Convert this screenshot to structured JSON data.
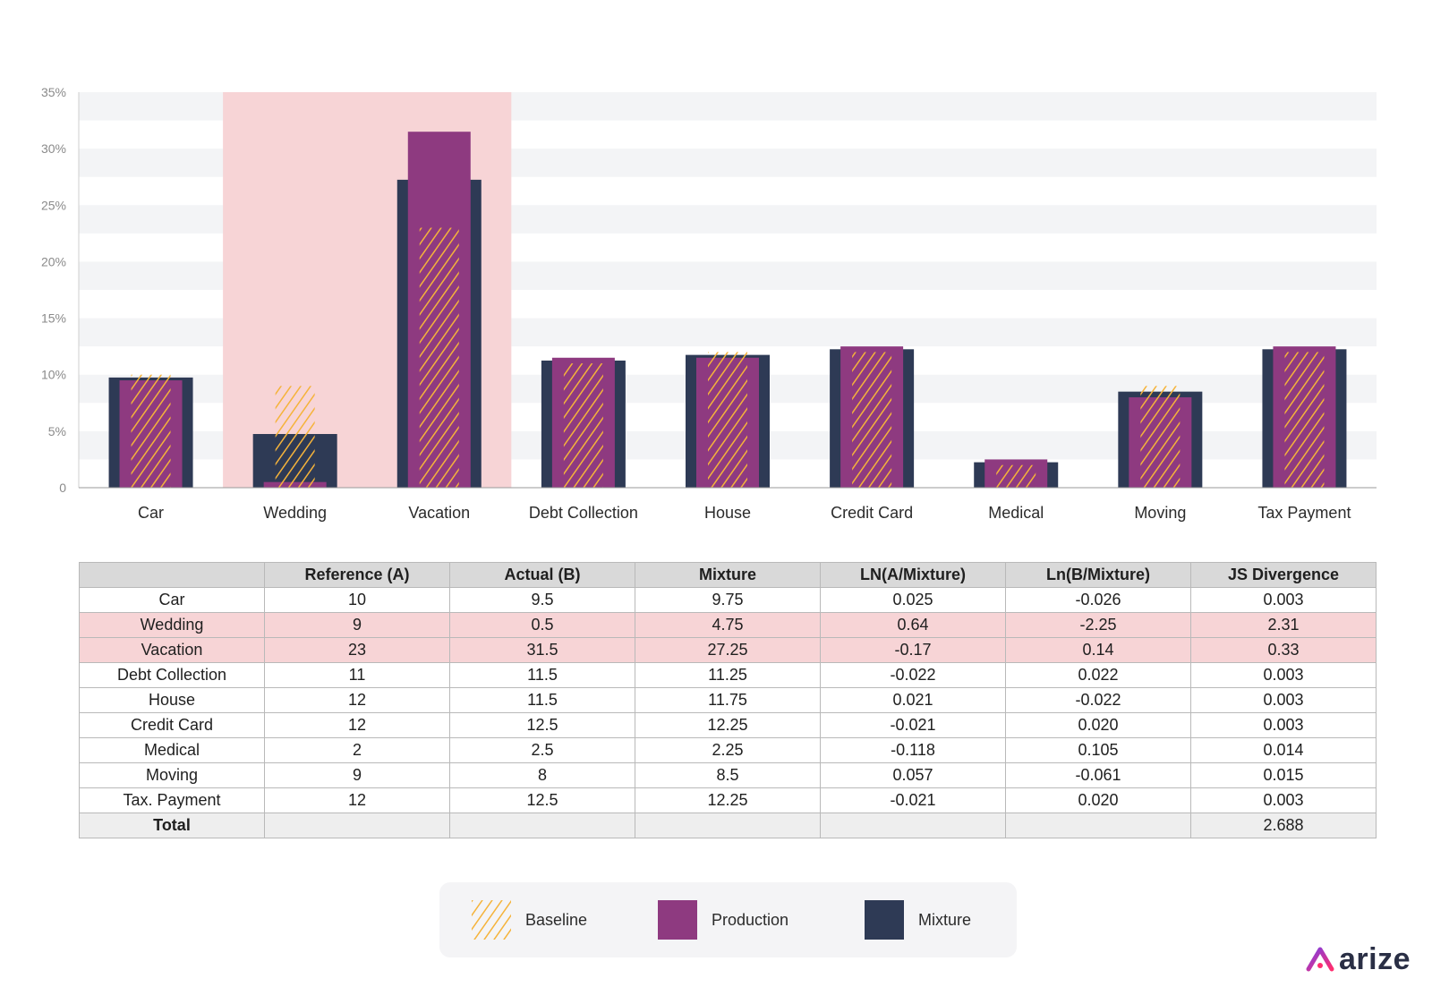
{
  "chart_data": {
    "type": "bar",
    "categories": [
      "Car",
      "Wedding",
      "Vacation",
      "Debt Collection",
      "House",
      "Credit Card",
      "Medical",
      "Moving",
      "Tax Payment"
    ],
    "series": [
      {
        "name": "Baseline",
        "values": [
          10,
          9,
          23,
          11,
          12,
          12,
          2,
          9,
          12
        ]
      },
      {
        "name": "Production",
        "values": [
          9.5,
          0.5,
          31.5,
          11.5,
          11.5,
          12.5,
          2.5,
          8,
          12.5
        ]
      },
      {
        "name": "Mixture",
        "values": [
          9.75,
          4.75,
          27.25,
          11.25,
          11.75,
          12.25,
          2.25,
          8.5,
          12.25
        ]
      }
    ],
    "y_ticks": [
      "0",
      "5%",
      "10%",
      "15%",
      "20%",
      "25%",
      "30%",
      "35%"
    ],
    "ylim": [
      0,
      35
    ],
    "highlighted_categories": [
      "Wedding",
      "Vacation"
    ],
    "legend_placement": "bottom",
    "grid": "alternating horizontal bands"
  },
  "table": {
    "headers": [
      "",
      "Reference (A)",
      "Actual (B)",
      "Mixture",
      "LN(A/Mixture)",
      "Ln(B/Mixture)",
      "JS Divergence"
    ],
    "rows": [
      {
        "cells": [
          "Car",
          "10",
          "9.5",
          "9.75",
          "0.025",
          "-0.026",
          "0.003"
        ],
        "highlight": false
      },
      {
        "cells": [
          "Wedding",
          "9",
          "0.5",
          "4.75",
          "0.64",
          "-2.25",
          "2.31"
        ],
        "highlight": true
      },
      {
        "cells": [
          "Vacation",
          "23",
          "31.5",
          "27.25",
          "-0.17",
          "0.14",
          "0.33"
        ],
        "highlight": true
      },
      {
        "cells": [
          "Debt Collection",
          "11",
          "11.5",
          "11.25",
          "-0.022",
          "0.022",
          "0.003"
        ],
        "highlight": false
      },
      {
        "cells": [
          "House",
          "12",
          "11.5",
          "11.75",
          "0.021",
          "-0.022",
          "0.003"
        ],
        "highlight": false
      },
      {
        "cells": [
          "Credit Card",
          "12",
          "12.5",
          "12.25",
          "-0.021",
          "0.020",
          "0.003"
        ],
        "highlight": false
      },
      {
        "cells": [
          "Medical",
          "2",
          "2.5",
          "2.25",
          "-0.118",
          "0.105",
          "0.014"
        ],
        "highlight": false
      },
      {
        "cells": [
          "Moving",
          "9",
          "8",
          "8.5",
          "0.057",
          "-0.061",
          "0.015"
        ],
        "highlight": false
      },
      {
        "cells": [
          "Tax. Payment",
          "12",
          "12.5",
          "12.25",
          "-0.021",
          "0.020",
          "0.003"
        ],
        "highlight": false
      }
    ],
    "total": [
      "Total",
      "",
      "",
      "",
      "",
      "",
      "2.688"
    ]
  },
  "legend": {
    "items": [
      {
        "label": "Baseline",
        "icon": "hatch-icon"
      },
      {
        "label": "Production",
        "color": "#8e3a80"
      },
      {
        "label": "Mixture",
        "color": "#2e3a55"
      }
    ]
  },
  "colors": {
    "production": "#8e3a80",
    "mixture": "#2e3a55",
    "baseline_hatch": "#f5b33a",
    "highlight": "#f7d4d6",
    "band": "#f3f4f6"
  },
  "logo": {
    "text": "arize",
    "icon": "arize-logo-icon"
  }
}
